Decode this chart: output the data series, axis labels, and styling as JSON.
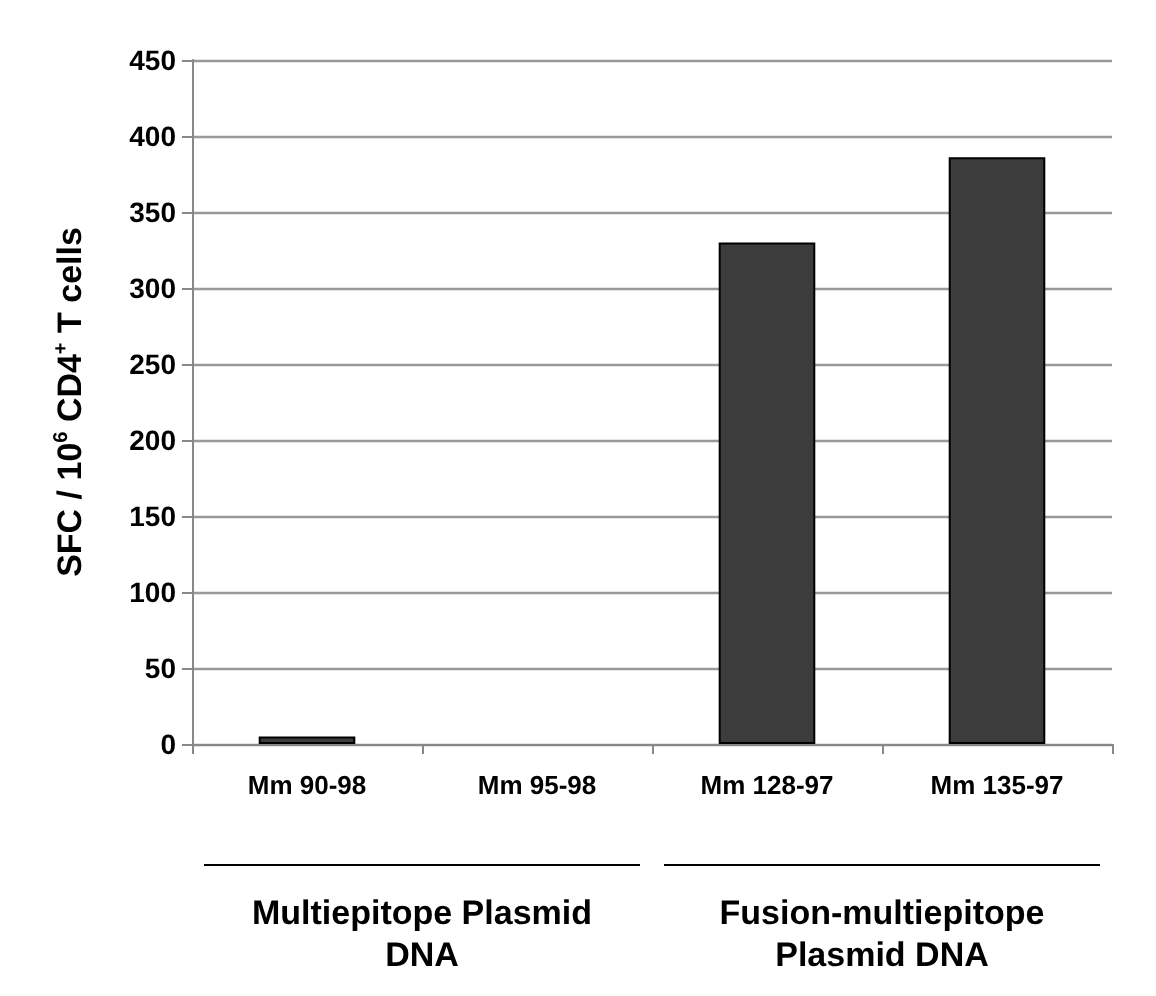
{
  "chart_data": {
    "type": "bar",
    "ylabel": "SFC / 10$^{6}$ CD4$^{+}$ T cells",
    "categories": [
      "Mm 90-98",
      "Mm 95-98",
      "Mm 128-97",
      "Mm 135-97"
    ],
    "values": [
      5,
      0,
      330,
      386
    ],
    "color": "#3c3c3c",
    "ylim": [
      0,
      450
    ],
    "yticks": [
      0,
      50,
      100,
      150,
      200,
      250,
      300,
      350,
      400,
      450
    ],
    "grid": "y",
    "annotations": [
      "Multiepitope Plasmid DNA",
      "Fusion-multiepitope Plasmid DNA"
    ]
  }
}
